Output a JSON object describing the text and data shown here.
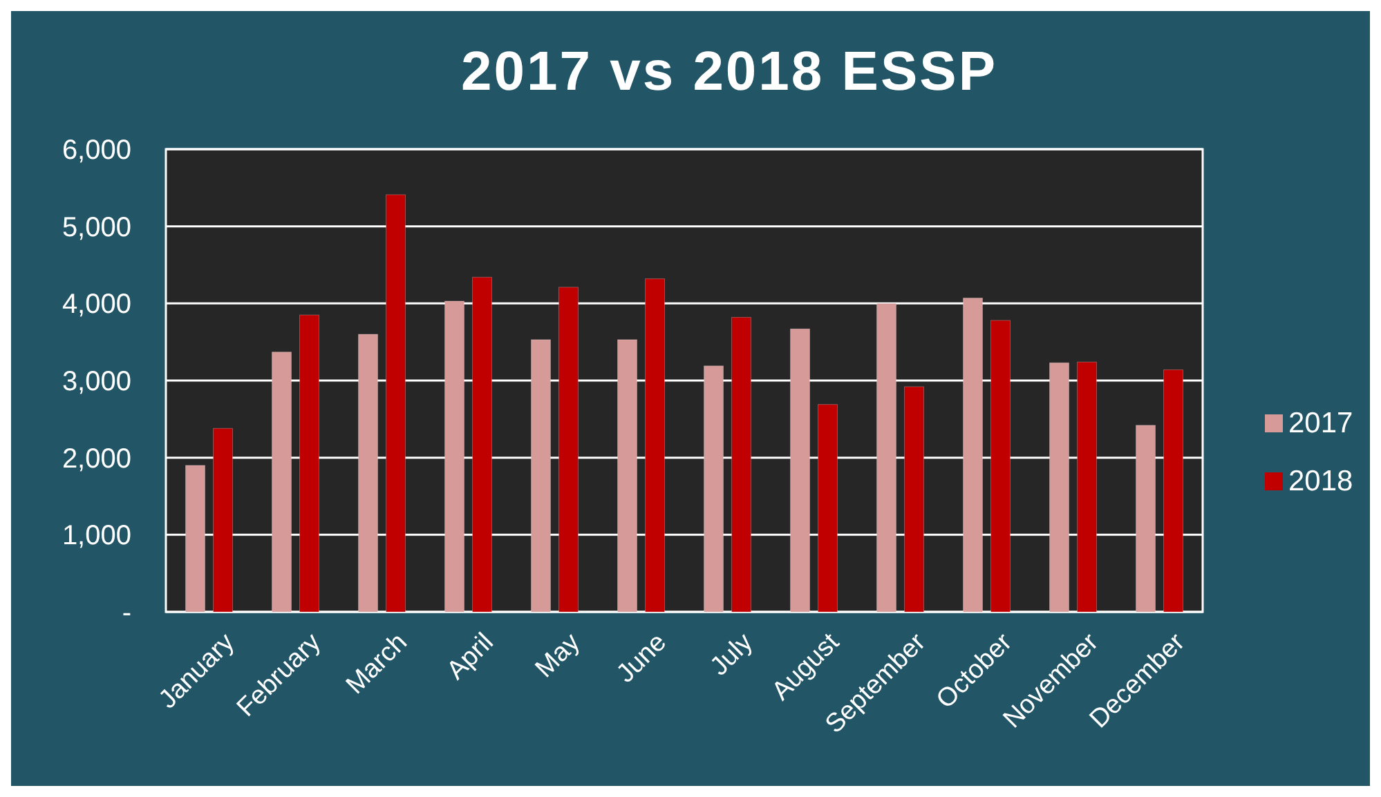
{
  "chart_data": {
    "type": "bar",
    "title": "2017 vs 2018 ESSP",
    "categories": [
      "January",
      "February",
      "March",
      "April",
      "May",
      "June",
      "July",
      "August",
      "September",
      "October",
      "November",
      "December"
    ],
    "series": [
      {
        "name": "2017",
        "color": "#d69a98",
        "values": [
          1900,
          3370,
          3600,
          4030,
          3530,
          3530,
          3190,
          3670,
          4000,
          4070,
          3230,
          2420
        ]
      },
      {
        "name": "2018",
        "color": "#c00000",
        "values": [
          2380,
          3850,
          5410,
          4340,
          4210,
          4320,
          3820,
          2690,
          2920,
          3780,
          3240,
          3140
        ]
      }
    ],
    "ylim": [
      0,
      6000
    ],
    "yticks": [
      {
        "value": 0,
        "label": "-"
      },
      {
        "value": 1000,
        "label": "1,000"
      },
      {
        "value": 2000,
        "label": "2,000"
      },
      {
        "value": 3000,
        "label": "3,000"
      },
      {
        "value": 4000,
        "label": "4,000"
      },
      {
        "value": 5000,
        "label": "5,000"
      },
      {
        "value": 6000,
        "label": "6,000"
      }
    ],
    "grid": "y",
    "legend": "right"
  }
}
